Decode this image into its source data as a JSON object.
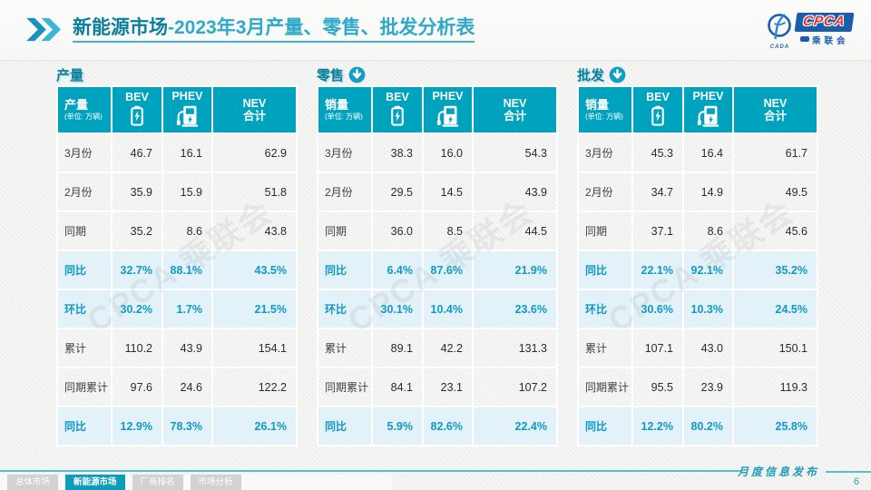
{
  "colors": {
    "header_teal": "#00A3BD",
    "section_title_teal": "#0B7F9C",
    "title_dark_teal": "#0C7D9A",
    "title_light_teal": "#2FA9C9",
    "highlight_row_bg": "#E3F2F9",
    "highlight_row_text": "#1099C6",
    "footer_line_teal": "#55BCD2",
    "active_tab_teal": "#0D9DBC",
    "logo_blue": "#1A5DAD",
    "logo_red": "#E0312E"
  },
  "header": {
    "title_bold": "新能源市场",
    "title_rest": "-2023年3月产量、零售、批发分析表",
    "logo_cpca": "CPCA",
    "logo_cada": "CADA",
    "logo_sub": "乘联会"
  },
  "watermark": "CPCA 乘联会",
  "tables": [
    {
      "id": "production",
      "section_title": "产量",
      "arrow_icon": false,
      "corner_label": "产量",
      "unit_label": "(单位: 万辆)",
      "col_headers": [
        {
          "label": "BEV",
          "icon": "bev-battery-icon"
        },
        {
          "label": "PHEV",
          "icon": "phev-charger-icon"
        },
        {
          "label": "NEV\n合计",
          "icon": null
        }
      ],
      "rows": [
        {
          "label": "3月份",
          "values": [
            "46.7",
            "16.1",
            "62.9"
          ],
          "highlight": false
        },
        {
          "label": "2月份",
          "values": [
            "35.9",
            "15.9",
            "51.8"
          ],
          "highlight": false
        },
        {
          "label": "同期",
          "values": [
            "35.2",
            "8.6",
            "43.8"
          ],
          "highlight": false
        },
        {
          "label": "同比",
          "values": [
            "32.7%",
            "88.1%",
            "43.5%"
          ],
          "highlight": true
        },
        {
          "label": "环比",
          "values": [
            "30.2%",
            "1.7%",
            "21.5%"
          ],
          "highlight": true
        },
        {
          "label": "累计",
          "values": [
            "110.2",
            "43.9",
            "154.1"
          ],
          "highlight": false
        },
        {
          "label": "同期累计",
          "values": [
            "97.6",
            "24.6",
            "122.2"
          ],
          "highlight": false
        },
        {
          "label": "同比",
          "values": [
            "12.9%",
            "78.3%",
            "26.1%"
          ],
          "highlight": true
        }
      ]
    },
    {
      "id": "retail",
      "section_title": "零售",
      "arrow_icon": true,
      "corner_label": "销量",
      "unit_label": "(单位: 万辆)",
      "col_headers": [
        {
          "label": "BEV",
          "icon": "bev-battery-icon"
        },
        {
          "label": "PHEV",
          "icon": "phev-charger-icon"
        },
        {
          "label": "NEV\n合计",
          "icon": null
        }
      ],
      "rows": [
        {
          "label": "3月份",
          "values": [
            "38.3",
            "16.0",
            "54.3"
          ],
          "highlight": false
        },
        {
          "label": "2月份",
          "values": [
            "29.5",
            "14.5",
            "43.9"
          ],
          "highlight": false
        },
        {
          "label": "同期",
          "values": [
            "36.0",
            "8.5",
            "44.5"
          ],
          "highlight": false
        },
        {
          "label": "同比",
          "values": [
            "6.4%",
            "87.6%",
            "21.9%"
          ],
          "highlight": true
        },
        {
          "label": "环比",
          "values": [
            "30.1%",
            "10.4%",
            "23.6%"
          ],
          "highlight": true
        },
        {
          "label": "累计",
          "values": [
            "89.1",
            "42.2",
            "131.3"
          ],
          "highlight": false
        },
        {
          "label": "同期累计",
          "values": [
            "84.1",
            "23.1",
            "107.2"
          ],
          "highlight": false
        },
        {
          "label": "同比",
          "values": [
            "5.9%",
            "82.6%",
            "22.4%"
          ],
          "highlight": true
        }
      ]
    },
    {
      "id": "wholesale",
      "section_title": "批发",
      "arrow_icon": true,
      "corner_label": "销量",
      "unit_label": "(单位: 万辆)",
      "col_headers": [
        {
          "label": "BEV",
          "icon": "bev-battery-icon"
        },
        {
          "label": "PHEV",
          "icon": "phev-charger-icon"
        },
        {
          "label": "NEV\n合计",
          "icon": null
        }
      ],
      "rows": [
        {
          "label": "3月份",
          "values": [
            "45.3",
            "16.4",
            "61.7"
          ],
          "highlight": false
        },
        {
          "label": "2月份",
          "values": [
            "34.7",
            "14.9",
            "49.5"
          ],
          "highlight": false
        },
        {
          "label": "同期",
          "values": [
            "37.1",
            "8.6",
            "45.6"
          ],
          "highlight": false
        },
        {
          "label": "同比",
          "values": [
            "22.1%",
            "92.1%",
            "35.2%"
          ],
          "highlight": true
        },
        {
          "label": "环比",
          "values": [
            "30.6%",
            "10.3%",
            "24.5%"
          ],
          "highlight": true
        },
        {
          "label": "累计",
          "values": [
            "107.1",
            "43.0",
            "150.1"
          ],
          "highlight": false
        },
        {
          "label": "同期累计",
          "values": [
            "95.5",
            "23.9",
            "119.3"
          ],
          "highlight": false
        },
        {
          "label": "同比",
          "values": [
            "12.2%",
            "80.2%",
            "25.8%"
          ],
          "highlight": true
        }
      ]
    }
  ],
  "footer": {
    "tabs": [
      {
        "id": "overall-market",
        "label": "总体市场",
        "active": false
      },
      {
        "id": "nev-market",
        "label": "新能源市场",
        "active": true
      },
      {
        "id": "oem-ranking",
        "label": "厂商排名",
        "active": false
      },
      {
        "id": "market-analysis",
        "label": "市场分析",
        "active": false
      }
    ],
    "publish_label": "月度信息发布",
    "page_number": "6"
  }
}
